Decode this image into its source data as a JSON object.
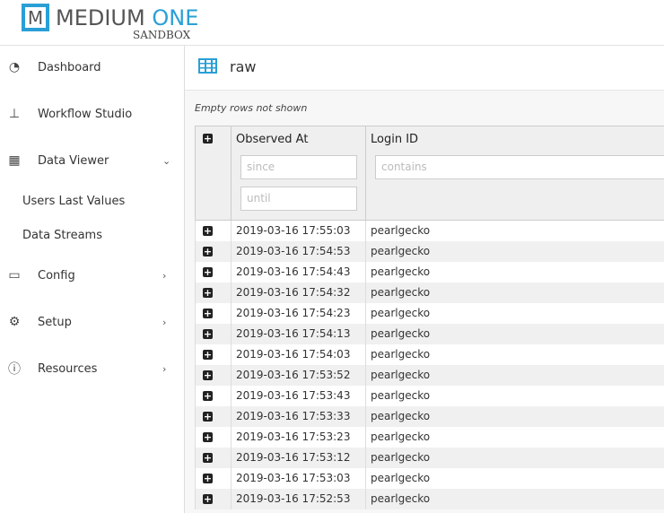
{
  "brand": {
    "logo_letter": "M",
    "name_a": "MEDIUM",
    "name_b": "ONE",
    "sub": "SANDBOX",
    "accent": "#2a9fd6"
  },
  "sidebar": {
    "items": [
      {
        "label": "Dashboard",
        "icon": "dashboard-icon"
      },
      {
        "label": "Workflow Studio",
        "icon": "sitemap-icon"
      },
      {
        "label": "Data Viewer",
        "icon": "table-icon",
        "chevron": "⌄"
      },
      {
        "label": "Users Last Values"
      },
      {
        "label": "Data Streams"
      },
      {
        "label": "Config",
        "icon": "desktop-icon",
        "chevron": "›"
      },
      {
        "label": "Setup",
        "icon": "gears-icon",
        "chevron": "›"
      },
      {
        "label": "Resources",
        "icon": "info-icon",
        "chevron": "›"
      }
    ]
  },
  "main": {
    "title": "raw",
    "note": "Empty rows not shown",
    "columns": {
      "observed": "Observed At",
      "login": "Login ID"
    },
    "filters": {
      "since": "since",
      "until": "until",
      "contains": "contains"
    },
    "rows": [
      [
        "2019-03-16 17:55:03",
        "pearlgecko"
      ],
      [
        "2019-03-16 17:54:53",
        "pearlgecko"
      ],
      [
        "2019-03-16 17:54:43",
        "pearlgecko"
      ],
      [
        "2019-03-16 17:54:32",
        "pearlgecko"
      ],
      [
        "2019-03-16 17:54:23",
        "pearlgecko"
      ],
      [
        "2019-03-16 17:54:13",
        "pearlgecko"
      ],
      [
        "2019-03-16 17:54:03",
        "pearlgecko"
      ],
      [
        "2019-03-16 17:53:52",
        "pearlgecko"
      ],
      [
        "2019-03-16 17:53:43",
        "pearlgecko"
      ],
      [
        "2019-03-16 17:53:33",
        "pearlgecko"
      ],
      [
        "2019-03-16 17:53:23",
        "pearlgecko"
      ],
      [
        "2019-03-16 17:53:12",
        "pearlgecko"
      ],
      [
        "2019-03-16 17:53:03",
        "pearlgecko"
      ],
      [
        "2019-03-16 17:52:53",
        "pearlgecko"
      ]
    ]
  }
}
